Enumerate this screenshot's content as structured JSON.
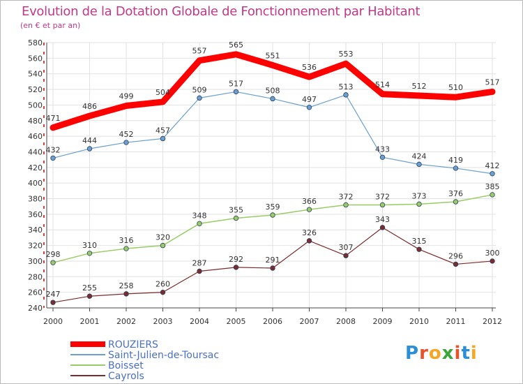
{
  "header": {
    "title": "Evolution de la Dotation Globale de Fonctionnement par Habitant",
    "subtitle": "(en € et par an)"
  },
  "brand": {
    "letters": [
      "P",
      "r",
      "o",
      "x",
      "i",
      "t",
      "i"
    ],
    "colors": [
      "#2c8fd6",
      "#e8532b",
      "#f5a623",
      "#3aa63a",
      "#e8532b",
      "#2c8fd6",
      "#f5a623"
    ]
  },
  "colors": {
    "title": "#c0398a",
    "axis_red": "#cc0000",
    "grid": "#e2e2e2"
  },
  "chart_data": {
    "type": "line",
    "title": "Evolution de la Dotation Globale de Fonctionnement par Habitant",
    "subtitle": "(en € et par an)",
    "x": [
      "2000",
      "2001",
      "2002",
      "2003",
      "2004",
      "2005",
      "2006",
      "2007",
      "2008",
      "2009",
      "2010",
      "2011",
      "2012"
    ],
    "ylim": [
      240,
      580
    ],
    "yticks": [
      240,
      260,
      280,
      300,
      320,
      340,
      360,
      380,
      400,
      420,
      440,
      460,
      480,
      500,
      520,
      540,
      560,
      580
    ],
    "grid": true,
    "legend_position": "bottom-left",
    "series": [
      {
        "name": "ROUZIERS",
        "color": "#ff0000",
        "values": [
          471,
          486,
          499,
          504,
          557,
          565,
          551,
          536,
          553,
          514,
          512,
          510,
          517
        ]
      },
      {
        "name": "Saint-Julien-de-Toursac",
        "color": "#6a9fcf",
        "values": [
          432,
          444,
          452,
          457,
          509,
          517,
          508,
          497,
          513,
          433,
          424,
          419,
          412
        ]
      },
      {
        "name": "Boisset",
        "color": "#99cc66",
        "values": [
          298,
          310,
          316,
          320,
          348,
          355,
          359,
          366,
          372,
          372,
          373,
          376,
          385
        ]
      },
      {
        "name": "Cayrols",
        "color": "#7b2c2c",
        "values": [
          247,
          255,
          258,
          260,
          287,
          292,
          291,
          326,
          307,
          343,
          315,
          296,
          300
        ]
      }
    ]
  }
}
